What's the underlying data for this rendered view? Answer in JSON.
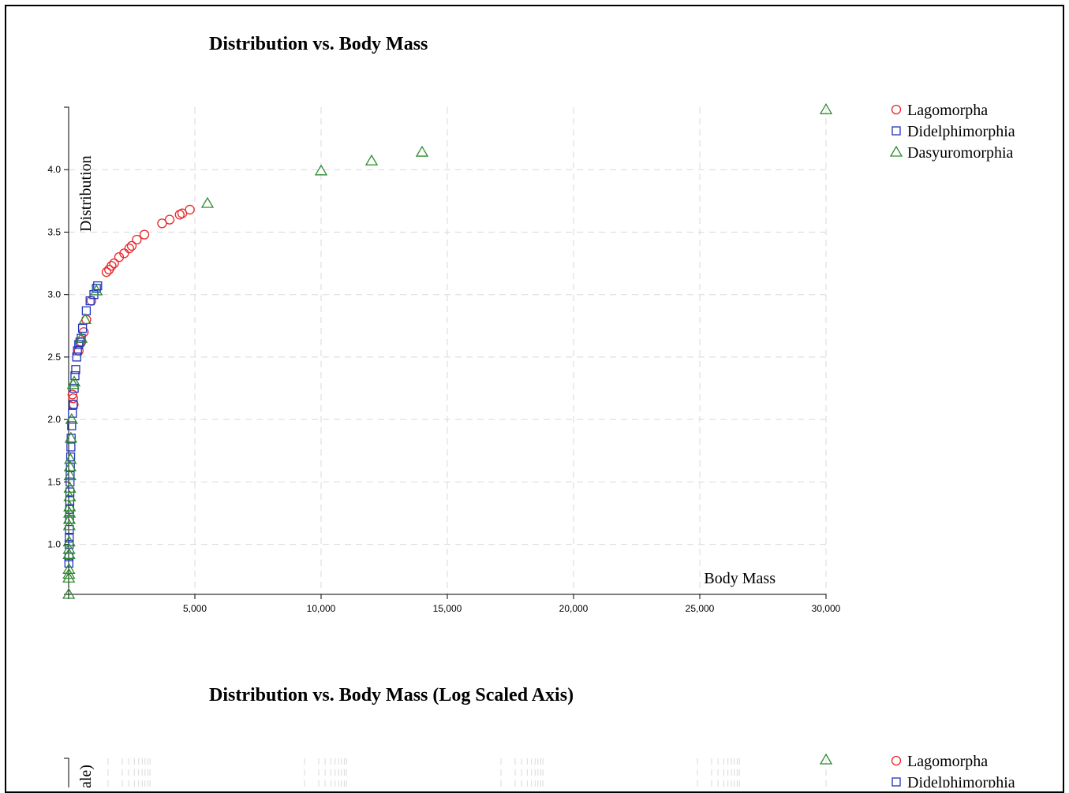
{
  "chart_data": [
    {
      "type": "scatter",
      "title": "Distribution vs. Body Mass",
      "xlabel": "Body Mass",
      "ylabel": "Distribution",
      "xlim": [
        0,
        30000
      ],
      "ylim": [
        0.6,
        4.5
      ],
      "x_ticks": [
        5000,
        10000,
        15000,
        20000,
        25000,
        30000
      ],
      "x_tick_labels": [
        "5,000",
        "10,000",
        "15,000",
        "20,000",
        "25,000",
        "30,000"
      ],
      "y_ticks": [
        1.0,
        1.5,
        2.0,
        2.5,
        3.0,
        3.5,
        4.0
      ],
      "y_tick_labels": [
        "1.0",
        "1.5",
        "2.0",
        "2.5",
        "3.0",
        "3.5",
        "4.0"
      ],
      "grid": true,
      "legend_position": "top-right",
      "series": [
        {
          "name": "Lagomorpha",
          "marker": "circle",
          "color": "#e8262b",
          "points": [
            [
              150,
              2.2
            ],
            [
              180,
              2.17
            ],
            [
              200,
              2.12
            ],
            [
              400,
              2.55
            ],
            [
              500,
              2.62
            ],
            [
              600,
              2.7
            ],
            [
              700,
              2.8
            ],
            [
              900,
              2.95
            ],
            [
              1500,
              3.18
            ],
            [
              1600,
              3.2
            ],
            [
              1700,
              3.23
            ],
            [
              1800,
              3.25
            ],
            [
              2000,
              3.3
            ],
            [
              2200,
              3.33
            ],
            [
              2400,
              3.37
            ],
            [
              2500,
              3.39
            ],
            [
              2700,
              3.44
            ],
            [
              3000,
              3.48
            ],
            [
              3700,
              3.57
            ],
            [
              4000,
              3.6
            ],
            [
              4400,
              3.64
            ],
            [
              4500,
              3.65
            ],
            [
              4800,
              3.68
            ]
          ]
        },
        {
          "name": "Didelphimorphia",
          "marker": "square",
          "color": "#2233bb",
          "points": [
            [
              10,
              0.85
            ],
            [
              15,
              0.9
            ],
            [
              20,
              1.0
            ],
            [
              25,
              1.05
            ],
            [
              30,
              1.12
            ],
            [
              35,
              1.2
            ],
            [
              40,
              1.28
            ],
            [
              45,
              1.35
            ],
            [
              50,
              1.42
            ],
            [
              55,
              1.5
            ],
            [
              60,
              1.55
            ],
            [
              70,
              1.62
            ],
            [
              80,
              1.7
            ],
            [
              90,
              1.78
            ],
            [
              100,
              1.85
            ],
            [
              120,
              1.95
            ],
            [
              150,
              2.05
            ],
            [
              180,
              2.12
            ],
            [
              220,
              2.25
            ],
            [
              250,
              2.35
            ],
            [
              280,
              2.4
            ],
            [
              320,
              2.5
            ],
            [
              350,
              2.55
            ],
            [
              400,
              2.6
            ],
            [
              450,
              2.62
            ],
            [
              500,
              2.65
            ],
            [
              550,
              2.73
            ],
            [
              700,
              2.87
            ],
            [
              850,
              2.95
            ],
            [
              1000,
              3.0
            ],
            [
              1100,
              3.05
            ],
            [
              1150,
              3.07
            ]
          ]
        },
        {
          "name": "Dasyuromorphia",
          "marker": "triangle",
          "color": "#2e8b2e",
          "points": [
            [
              5,
              0.6
            ],
            [
              8,
              0.73
            ],
            [
              10,
              0.76
            ],
            [
              12,
              0.8
            ],
            [
              15,
              0.92
            ],
            [
              18,
              0.96
            ],
            [
              20,
              1.02
            ],
            [
              25,
              1.15
            ],
            [
              30,
              1.2
            ],
            [
              35,
              1.25
            ],
            [
              40,
              1.3
            ],
            [
              45,
              1.38
            ],
            [
              50,
              1.45
            ],
            [
              55,
              1.55
            ],
            [
              60,
              1.62
            ],
            [
              70,
              1.68
            ],
            [
              90,
              1.85
            ],
            [
              120,
              2.0
            ],
            [
              180,
              2.28
            ],
            [
              220,
              2.3
            ],
            [
              500,
              2.65
            ],
            [
              650,
              2.8
            ],
            [
              1100,
              3.03
            ],
            [
              5500,
              3.73
            ],
            [
              10000,
              3.99
            ],
            [
              12000,
              4.07
            ],
            [
              14000,
              4.14
            ],
            [
              30000,
              4.48
            ]
          ]
        }
      ]
    },
    {
      "type": "scatter",
      "title": "Distribution vs. Body Mass (Log Scaled Axis)",
      "ylabel_partial": "ale)",
      "grid": true,
      "legend_position": "top-right",
      "series": [
        {
          "name": "Lagomorpha",
          "marker": "circle",
          "color": "#e8262b"
        },
        {
          "name": "Didelphimorphia",
          "marker": "square",
          "color": "#2233bb"
        },
        {
          "name": "Dasyuromorphia",
          "marker": "triangle",
          "color": "#2e8b2e",
          "visible_points": [
            [
              30000,
              4.48
            ]
          ]
        }
      ]
    }
  ]
}
